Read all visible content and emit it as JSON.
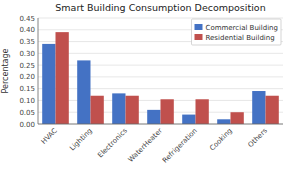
{
  "chart_data": {
    "type": "bar",
    "title": "Smart Building Consumption Decomposition",
    "ylabel": "Percentage",
    "categories": [
      "HVAC",
      "Lighting",
      "Electronics",
      "WaterHeater",
      "Refrigeration",
      "Cooking",
      "Others"
    ],
    "series": [
      {
        "name": "Commercial Building",
        "color": "#4472C4",
        "values": [
          0.34,
          0.27,
          0.13,
          0.06,
          0.04,
          0.02,
          0.14
        ]
      },
      {
        "name": "Residential Building",
        "color": "#C0504D",
        "values": [
          0.39,
          0.12,
          0.12,
          0.105,
          0.105,
          0.05,
          0.12
        ]
      }
    ],
    "ylim": [
      0,
      0.45
    ],
    "yticks": [
      {
        "value": 0,
        "label": "0.00"
      },
      0.05,
      {
        "value": 0.1,
        "label": "0.10"
      },
      0.15,
      {
        "value": 0.2,
        "label": "0.20"
      },
      0.25,
      {
        "value": 0.3,
        "label": "0.30"
      },
      0.35,
      {
        "value": 0.4,
        "label": "0.40"
      },
      0.45
    ],
    "grid": true,
    "legend": "upper right"
  }
}
